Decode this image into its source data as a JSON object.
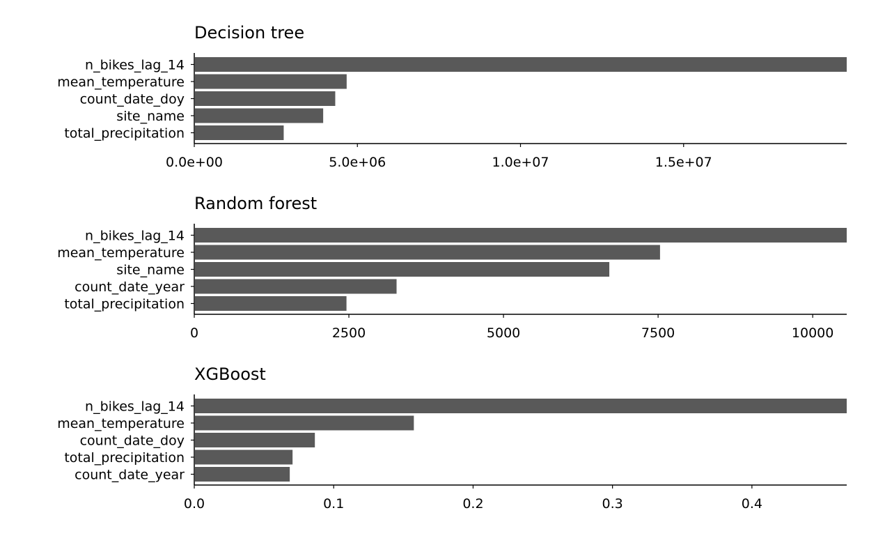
{
  "chart_data": [
    {
      "type": "bar",
      "orientation": "horizontal",
      "title": "Decision tree",
      "categories": [
        "n_bikes_lag_14",
        "mean_temperature",
        "count_date_doy",
        "site_name",
        "total_precipitation"
      ],
      "values": [
        20000000,
        4650000,
        4300000,
        3930000,
        2720000
      ],
      "xlim": [
        0,
        20000000
      ],
      "ticks": [
        0,
        5000000,
        10000000,
        15000000
      ],
      "tick_labels": [
        "0.0e+00",
        "5.0e+06",
        "1.0e+07",
        "1.5e+07"
      ],
      "bar_color": "#595959",
      "grid": false
    },
    {
      "type": "bar",
      "orientation": "horizontal",
      "title": "Random forest",
      "categories": [
        "n_bikes_lag_14",
        "mean_temperature",
        "site_name",
        "count_date_year",
        "total_precipitation"
      ],
      "values": [
        10550,
        7520,
        6700,
        3260,
        2450
      ],
      "xlim": [
        0,
        10550
      ],
      "ticks": [
        0,
        2500,
        5000,
        7500,
        10000
      ],
      "tick_labels": [
        "0",
        "2500",
        "5000",
        "7500",
        "10000"
      ],
      "bar_color": "#595959",
      "grid": false
    },
    {
      "type": "bar",
      "orientation": "horizontal",
      "title": "XGBoost",
      "categories": [
        "n_bikes_lag_14",
        "mean_temperature",
        "count_date_doy",
        "total_precipitation",
        "count_date_year"
      ],
      "values": [
        0.468,
        0.157,
        0.086,
        0.07,
        0.068
      ],
      "xlim": [
        0,
        0.468
      ],
      "ticks": [
        0,
        0.1,
        0.2,
        0.3,
        0.4
      ],
      "tick_labels": [
        "0.0",
        "0.1",
        "0.2",
        "0.3",
        "0.4"
      ],
      "bar_color": "#595959",
      "grid": false
    }
  ]
}
